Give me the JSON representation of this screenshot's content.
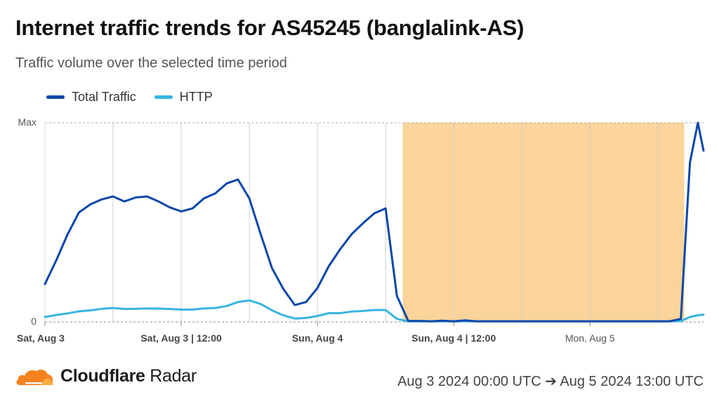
{
  "header": {
    "title": "Internet traffic trends for AS45245 (banglalink-AS)",
    "subtitle": "Traffic volume over the selected time period"
  },
  "footer": {
    "brand_bold": "Cloudflare",
    "brand_regular": "Radar",
    "date_range": "Aug 3 2024 00:00 UTC ➔ Aug 5 2024 13:00 UTC",
    "logo_icon": "cloudflare-cloud-icon"
  },
  "colors": {
    "total_traffic": "#0a47a9",
    "http": "#37b5e0",
    "outage_band": "#f9cc88",
    "grid": "#dddddd"
  },
  "chart_data": {
    "type": "line",
    "xlabel": "",
    "ylabel": "",
    "x_unit": "hours since Sat, Aug 3 00:00 UTC",
    "xlim": [
      0,
      58
    ],
    "ylim": [
      0,
      1
    ],
    "y_tick_labels": [
      "0",
      "Max"
    ],
    "x_ticks": [
      {
        "x": 0,
        "label": "Sat, Aug 3",
        "bold": true
      },
      {
        "x": 12,
        "label": "Sat, Aug 3 | 12:00",
        "bold": true
      },
      {
        "x": 24,
        "label": "Sun, Aug 4",
        "bold": true
      },
      {
        "x": 36,
        "label": "Sun, Aug 4 | 12:00",
        "bold": true
      },
      {
        "x": 48,
        "label": "Mon, Aug 5",
        "bold": false
      }
    ],
    "grid_x": [
      6,
      12,
      18,
      24,
      30,
      36,
      42,
      48,
      54
    ],
    "legend_position": "top-left",
    "outage_range": [
      31.5,
      56.3
    ],
    "series": [
      {
        "name": "Total Traffic",
        "color": "#0a47a9",
        "points": [
          [
            0,
            0.19
          ],
          [
            1,
            0.31
          ],
          [
            2,
            0.44
          ],
          [
            3,
            0.55
          ],
          [
            4,
            0.59
          ],
          [
            5,
            0.615
          ],
          [
            6,
            0.63
          ],
          [
            7,
            0.605
          ],
          [
            8,
            0.625
          ],
          [
            9,
            0.63
          ],
          [
            10,
            0.605
          ],
          [
            11,
            0.575
          ],
          [
            12,
            0.555
          ],
          [
            13,
            0.57
          ],
          [
            14,
            0.62
          ],
          [
            15,
            0.645
          ],
          [
            16,
            0.695
          ],
          [
            17,
            0.715
          ],
          [
            18,
            0.62
          ],
          [
            19,
            0.44
          ],
          [
            20,
            0.27
          ],
          [
            21,
            0.165
          ],
          [
            22,
            0.085
          ],
          [
            23,
            0.1
          ],
          [
            24,
            0.17
          ],
          [
            25,
            0.28
          ],
          [
            26,
            0.365
          ],
          [
            27,
            0.44
          ],
          [
            28,
            0.495
          ],
          [
            29,
            0.545
          ],
          [
            30,
            0.57
          ],
          [
            31,
            0.13
          ],
          [
            32,
            0.005
          ],
          [
            33,
            0.005
          ],
          [
            34,
            0.003
          ],
          [
            35,
            0.006
          ],
          [
            36,
            0.003
          ],
          [
            37,
            0.008
          ],
          [
            38,
            0.003
          ],
          [
            39,
            0.003
          ],
          [
            40,
            0.003
          ],
          [
            41,
            0.003
          ],
          [
            42,
            0.003
          ],
          [
            43,
            0.003
          ],
          [
            44,
            0.003
          ],
          [
            45,
            0.003
          ],
          [
            46,
            0.003
          ],
          [
            47,
            0.003
          ],
          [
            48,
            0.003
          ],
          [
            49,
            0.003
          ],
          [
            50,
            0.003
          ],
          [
            51,
            0.003
          ],
          [
            52,
            0.003
          ],
          [
            53,
            0.003
          ],
          [
            54,
            0.003
          ],
          [
            55,
            0.003
          ],
          [
            56,
            0.015
          ],
          [
            56.8,
            0.8
          ],
          [
            57.5,
            1.0
          ],
          [
            58,
            0.86
          ]
        ]
      },
      {
        "name": "HTTP",
        "color": "#37b5e0",
        "points": [
          [
            0,
            0.025
          ],
          [
            1,
            0.035
          ],
          [
            2,
            0.043
          ],
          [
            3,
            0.053
          ],
          [
            4,
            0.058
          ],
          [
            5,
            0.066
          ],
          [
            6,
            0.07
          ],
          [
            7,
            0.065
          ],
          [
            8,
            0.066
          ],
          [
            9,
            0.068
          ],
          [
            10,
            0.067
          ],
          [
            11,
            0.065
          ],
          [
            12,
            0.062
          ],
          [
            13,
            0.062
          ],
          [
            14,
            0.068
          ],
          [
            15,
            0.07
          ],
          [
            16,
            0.08
          ],
          [
            17,
            0.1
          ],
          [
            18,
            0.108
          ],
          [
            19,
            0.09
          ],
          [
            20,
            0.058
          ],
          [
            21,
            0.033
          ],
          [
            22,
            0.017
          ],
          [
            23,
            0.02
          ],
          [
            24,
            0.03
          ],
          [
            25,
            0.044
          ],
          [
            26,
            0.044
          ],
          [
            27,
            0.052
          ],
          [
            28,
            0.055
          ],
          [
            29,
            0.06
          ],
          [
            30,
            0.06
          ],
          [
            31,
            0.015
          ],
          [
            32,
            0.003
          ],
          [
            33,
            0.003
          ],
          [
            34,
            0.003
          ],
          [
            35,
            0.003
          ],
          [
            36,
            0.003
          ],
          [
            37,
            0.003
          ],
          [
            38,
            0.003
          ],
          [
            39,
            0.003
          ],
          [
            40,
            0.003
          ],
          [
            41,
            0.003
          ],
          [
            42,
            0.003
          ],
          [
            43,
            0.003
          ],
          [
            44,
            0.003
          ],
          [
            45,
            0.003
          ],
          [
            46,
            0.003
          ],
          [
            47,
            0.003
          ],
          [
            48,
            0.003
          ],
          [
            49,
            0.003
          ],
          [
            50,
            0.003
          ],
          [
            51,
            0.003
          ],
          [
            52,
            0.003
          ],
          [
            53,
            0.003
          ],
          [
            54,
            0.003
          ],
          [
            55,
            0.003
          ],
          [
            56,
            0.004
          ],
          [
            56.8,
            0.025
          ],
          [
            57.5,
            0.033
          ],
          [
            58,
            0.037
          ]
        ]
      }
    ]
  }
}
